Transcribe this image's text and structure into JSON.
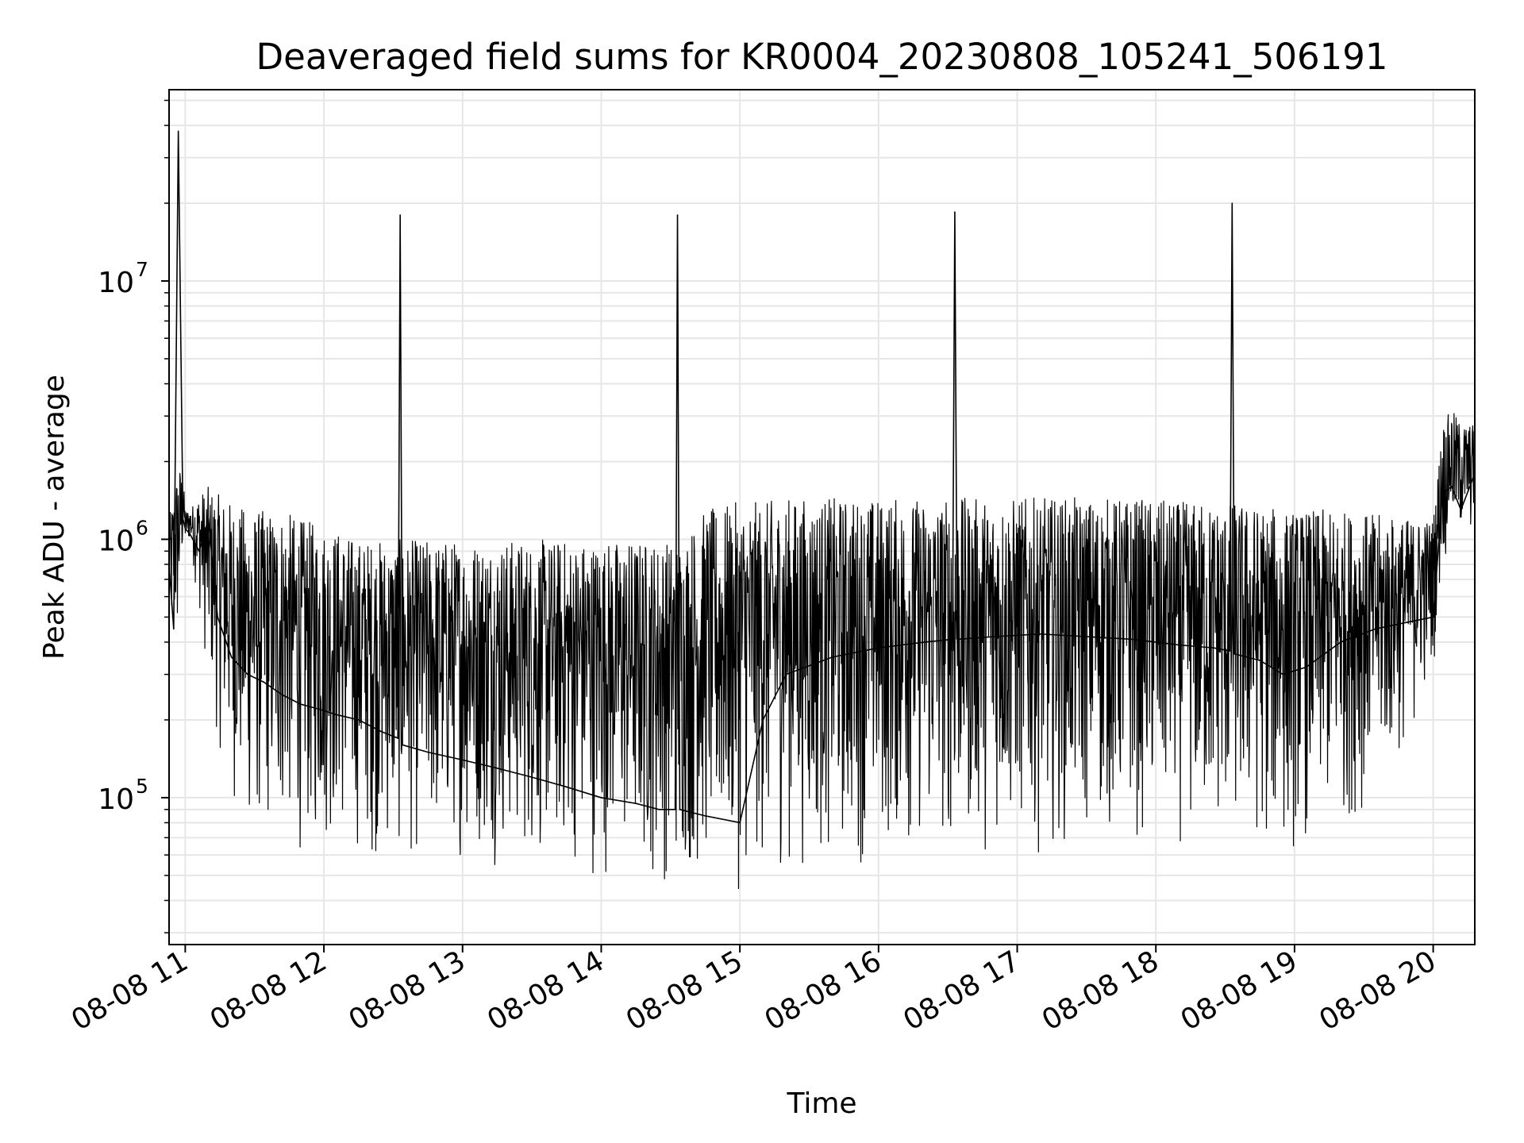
{
  "chart_data": {
    "type": "line",
    "title": "Deaveraged field sums for KR0004_20230808_105241_506191",
    "xlabel": "Time",
    "ylabel": "Peak ADU - average",
    "yscale": "log",
    "xlim": [
      "2023-08-08 10:53",
      "2023-08-08 20:18"
    ],
    "ylim": [
      27000,
      55000000
    ],
    "grid": true,
    "legend": "none",
    "colors": {
      "line": "#000000",
      "grid": "#e6e6e6",
      "frame": "#000000"
    },
    "x_ticks": [
      {
        "t": "2023-08-08 11:00",
        "label": "08-08 11"
      },
      {
        "t": "2023-08-08 12:00",
        "label": "08-08 12"
      },
      {
        "t": "2023-08-08 13:00",
        "label": "08-08 13"
      },
      {
        "t": "2023-08-08 14:00",
        "label": "08-08 14"
      },
      {
        "t": "2023-08-08 15:00",
        "label": "08-08 15"
      },
      {
        "t": "2023-08-08 16:00",
        "label": "08-08 16"
      },
      {
        "t": "2023-08-08 17:00",
        "label": "08-08 17"
      },
      {
        "t": "2023-08-08 18:00",
        "label": "08-08 18"
      },
      {
        "t": "2023-08-08 19:00",
        "label": "08-08 19"
      },
      {
        "t": "2023-08-08 20:00",
        "label": "08-08 20"
      }
    ],
    "y_ticks": [
      {
        "value": 100000,
        "base": "10",
        "exp": "5"
      },
      {
        "value": 1000000,
        "base": "10",
        "exp": "6"
      },
      {
        "value": 10000000,
        "base": "10",
        "exp": "7"
      }
    ],
    "series": [
      {
        "x": [
          "2023-08-08 10:53",
          "2023-08-08 10:55",
          "2023-08-08 10:57",
          "2023-08-08 10:59",
          "2023-08-08 11:00",
          "2023-08-08 11:02",
          "2023-08-08 11:06",
          "2023-08-08 11:10",
          "2023-08-08 11:14",
          "2023-08-08 11:20",
          "2023-08-08 11:27",
          "2023-08-08 11:34",
          "2023-08-08 11:42",
          "2023-08-08 11:50",
          "2023-08-08 11:58",
          "2023-08-08 12:05",
          "2023-08-08 12:15",
          "2023-08-08 12:25",
          "2023-08-08 12:32",
          "2023-08-08 12:33",
          "2023-08-08 12:34",
          "2023-08-08 12:45",
          "2023-08-08 13:00",
          "2023-08-08 13:15",
          "2023-08-08 13:30",
          "2023-08-08 13:45",
          "2023-08-08 14:00",
          "2023-08-08 14:15",
          "2023-08-08 14:25",
          "2023-08-08 14:32",
          "2023-08-08 14:33",
          "2023-08-08 14:34",
          "2023-08-08 14:45",
          "2023-08-08 15:00",
          "2023-08-08 15:10",
          "2023-08-08 15:20",
          "2023-08-08 15:40",
          "2023-08-08 16:00",
          "2023-08-08 16:20",
          "2023-08-08 16:32",
          "2023-08-08 16:33",
          "2023-08-08 16:34",
          "2023-08-08 16:50",
          "2023-08-08 17:10",
          "2023-08-08 17:30",
          "2023-08-08 17:50",
          "2023-08-08 18:10",
          "2023-08-08 18:25",
          "2023-08-08 18:32",
          "2023-08-08 18:33",
          "2023-08-08 18:34",
          "2023-08-08 18:45",
          "2023-08-08 18:55",
          "2023-08-08 19:05",
          "2023-08-08 19:20",
          "2023-08-08 19:35",
          "2023-08-08 19:50",
          "2023-08-08 20:00",
          "2023-08-08 20:04",
          "2023-08-08 20:08",
          "2023-08-08 20:12",
          "2023-08-08 20:18"
        ],
        "values": [
          800000,
          450000,
          38000000,
          1200000,
          1100000,
          1050000,
          900000,
          1200000,
          500000,
          350000,
          300000,
          280000,
          250000,
          230000,
          220000,
          210000,
          200000,
          180000,
          170000,
          18000000,
          160000,
          150000,
          140000,
          130000,
          120000,
          110000,
          100000,
          95000,
          90000,
          90000,
          18000000,
          90000,
          85000,
          80000,
          200000,
          300000,
          350000,
          380000,
          400000,
          410000,
          18500000,
          410000,
          420000,
          430000,
          420000,
          410000,
          390000,
          380000,
          370000,
          20000000,
          360000,
          340000,
          300000,
          320000,
          400000,
          450000,
          480000,
          500000,
          1500000,
          1600000,
          1300000,
          1800000
        ],
        "lower_envelope": [
          350000,
          300000,
          300000,
          800000,
          900000,
          950000,
          500000,
          250000,
          150000,
          90000,
          60000,
          60000,
          60000,
          55000,
          55000,
          60000,
          55000,
          52000,
          50000,
          50000,
          50000,
          52000,
          55000,
          52000,
          50000,
          48000,
          46000,
          44000,
          42000,
          42000,
          42000,
          42000,
          42000,
          40000,
          45000,
          48000,
          50000,
          52000,
          55000,
          55000,
          55000,
          55000,
          58000,
          60000,
          62000,
          62000,
          60000,
          58000,
          58000,
          58000,
          58000,
          55000,
          52000,
          60000,
          70000,
          90000,
          150000,
          300000,
          700000,
          900000,
          900000,
          1000000
        ],
        "upper_envelope": [
          1200000,
          1500000,
          2000000,
          1800000,
          1300000,
          1300000,
          1500000,
          1600000,
          1500000,
          1400000,
          1300000,
          1300000,
          1300000,
          1200000,
          1150000,
          1100000,
          1000000,
          1000000,
          1000000,
          1000000,
          1000000,
          1000000,
          1000000,
          1000000,
          1000000,
          1000000,
          1000000,
          1000000,
          1000000,
          1000000,
          1000000,
          1000000,
          1300000,
          1400000,
          1400000,
          1450000,
          1450000,
          1450000,
          1450000,
          1450000,
          1450000,
          1450000,
          1450000,
          1450000,
          1450000,
          1450000,
          1400000,
          1400000,
          1400000,
          1400000,
          1400000,
          1350000,
          1300000,
          1300000,
          1300000,
          1250000,
          1200000,
          1200000,
          2800000,
          3200000,
          2800000,
          2800000
        ]
      }
    ]
  }
}
